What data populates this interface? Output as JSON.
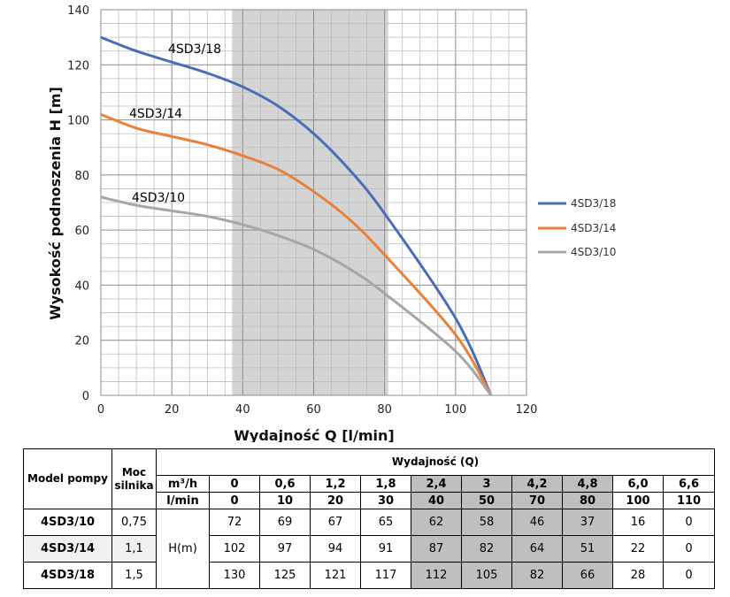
{
  "chart_data": {
    "type": "line",
    "xlabel": "Wydajność Q [l/min]",
    "ylabel": "Wysokość podnoszenia H [m]",
    "xlim": [
      0,
      120
    ],
    "ylim": [
      0,
      140
    ],
    "xticks": [
      0,
      20,
      40,
      60,
      80,
      100,
      120
    ],
    "yticks": [
      0,
      20,
      40,
      60,
      80,
      100,
      120,
      140
    ],
    "grid": true,
    "highlight_range": [
      37,
      81
    ],
    "legend_position": "right",
    "series": [
      {
        "name": "4SD3/18",
        "color": "#4a6eb5",
        "x": [
          0,
          10,
          20,
          30,
          40,
          50,
          60,
          70,
          80,
          100,
          110
        ],
        "y": [
          130,
          125,
          121,
          117,
          112,
          105,
          95,
          82,
          66,
          28,
          0
        ]
      },
      {
        "name": "4SD3/14",
        "color": "#e8813a",
        "x": [
          0,
          10,
          20,
          30,
          40,
          50,
          60,
          70,
          80,
          100,
          110
        ],
        "y": [
          102,
          97,
          94,
          91,
          87,
          82,
          74,
          64,
          51,
          22,
          0
        ]
      },
      {
        "name": "4SD3/10",
        "color": "#a6a6a6",
        "x": [
          0,
          10,
          20,
          30,
          40,
          50,
          60,
          70,
          80,
          100,
          110
        ],
        "y": [
          72,
          69,
          67,
          65,
          62,
          58,
          53,
          46,
          37,
          16,
          0
        ]
      }
    ]
  },
  "table": {
    "col_model": "Model pompy",
    "col_power": "Moc silnika",
    "col_flow": "Wydajność (Q)",
    "unit_m3h": "m³/h",
    "unit_lmin": "l/min",
    "unit_h": "H(m)",
    "flow_m3h": [
      "0",
      "0,6",
      "1,2",
      "1,8",
      "2,4",
      "3",
      "4,2",
      "4,8",
      "6,0",
      "6,6"
    ],
    "flow_lmin": [
      "0",
      "10",
      "20",
      "30",
      "40",
      "50",
      "70",
      "80",
      "100",
      "110"
    ],
    "rows": [
      {
        "model": "4SD3/10",
        "power": "0,75",
        "values": [
          "72",
          "69",
          "67",
          "65",
          "62",
          "58",
          "46",
          "37",
          "16",
          "0"
        ]
      },
      {
        "model": "4SD3/14",
        "power": "1,1",
        "values": [
          "102",
          "97",
          "94",
          "91",
          "87",
          "82",
          "64",
          "51",
          "22",
          "0"
        ]
      },
      {
        "model": "4SD3/18",
        "power": "1,5",
        "values": [
          "130",
          "125",
          "121",
          "117",
          "112",
          "105",
          "82",
          "66",
          "28",
          "0"
        ]
      }
    ]
  }
}
